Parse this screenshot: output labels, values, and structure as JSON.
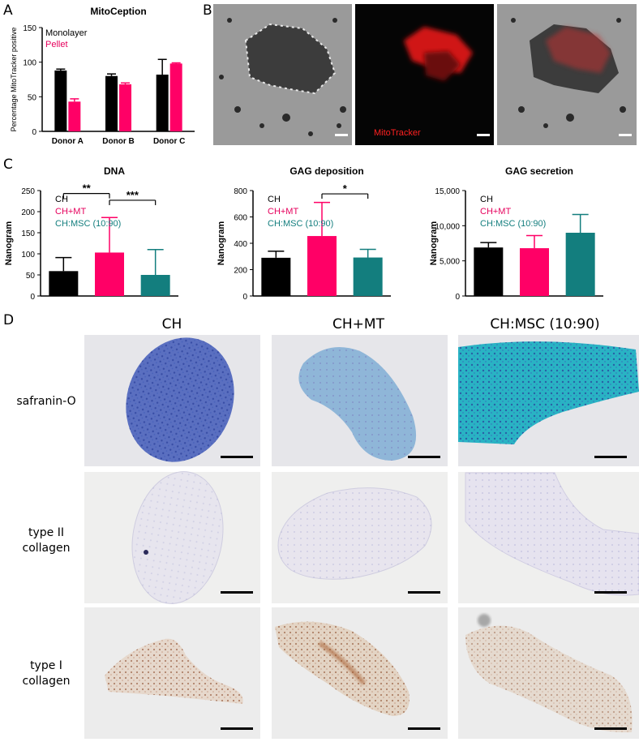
{
  "panels": {
    "a": "A",
    "b": "B",
    "c": "C",
    "d": "D"
  },
  "colors": {
    "black": "#000000",
    "pink": "#ff0066",
    "teal": "#137e7e",
    "pink_text": "#e6005c",
    "teal_text": "#137e7e"
  },
  "panel_b": {
    "mitotracker_label": "MitoTracker"
  },
  "panel_d": {
    "col_headers": [
      "CH",
      "CH+MT",
      "CH:MSC (10:90)"
    ],
    "row_headers": [
      [
        "safranin-O"
      ],
      [
        "type II",
        "collagen"
      ],
      [
        "type I",
        "collagen"
      ]
    ]
  },
  "chart_data": [
    {
      "type": "bar",
      "title": "MitoCeption",
      "ylabel": "Percentage MitoTracker positive",
      "categories": [
        "Donor A",
        "Donor B",
        "Donor C"
      ],
      "ylim": [
        0,
        150
      ],
      "yticks": [
        "0",
        "50",
        "100",
        "150"
      ],
      "legend": "top-left",
      "series": [
        {
          "name": "Monolayer",
          "color": "#000000",
          "values": [
            88,
            80,
            82
          ],
          "errors": [
            2,
            3,
            22
          ]
        },
        {
          "name": "Pellet",
          "color": "#ff0066",
          "values": [
            43,
            68,
            98
          ],
          "errors": [
            4,
            2,
            1
          ]
        }
      ]
    },
    {
      "type": "bar",
      "title": "DNA",
      "ylabel": "Nanogram",
      "categories": [
        "CH",
        "CH+MT",
        "CH:MSC (10:90)"
      ],
      "colors": [
        "#000000",
        "#ff0066",
        "#137e7e"
      ],
      "values": [
        59,
        103,
        50
      ],
      "errors": [
        32,
        83,
        60
      ],
      "ylim": [
        0,
        250
      ],
      "yticks": [
        "0",
        "50",
        "100",
        "150",
        "200",
        "250"
      ],
      "legend": "top-left",
      "significance": [
        {
          "from": 0,
          "to": 1,
          "label": "**",
          "y": 243
        },
        {
          "from": 1,
          "to": 2,
          "label": "***",
          "y": 227
        }
      ]
    },
    {
      "type": "bar",
      "title": "GAG deposition",
      "ylabel": "Nanogram",
      "categories": [
        "CH",
        "CH+MT",
        "CH:MSC (10:90)"
      ],
      "colors": [
        "#000000",
        "#ff0066",
        "#137e7e"
      ],
      "values": [
        290,
        455,
        292
      ],
      "errors": [
        50,
        255,
        62
      ],
      "ylim": [
        0,
        800
      ],
      "yticks": [
        "0",
        "200",
        "400",
        "600",
        "800"
      ],
      "legend": "top-left",
      "significance": [
        {
          "from": 1,
          "to": 2,
          "label": "*",
          "y": 775
        }
      ]
    },
    {
      "type": "bar",
      "title": "GAG secretion",
      "ylabel": "Nanogram",
      "categories": [
        "CH",
        "CH+MT",
        "CH:MSC (10:90)"
      ],
      "colors": [
        "#000000",
        "#ff0066",
        "#137e7e"
      ],
      "values": [
        6900,
        6800,
        9000
      ],
      "errors": [
        700,
        1800,
        2600
      ],
      "ylim": [
        0,
        15000
      ],
      "yticks": [
        "0",
        "5,000",
        "10,000",
        "15,000"
      ],
      "legend": "top-left"
    }
  ]
}
